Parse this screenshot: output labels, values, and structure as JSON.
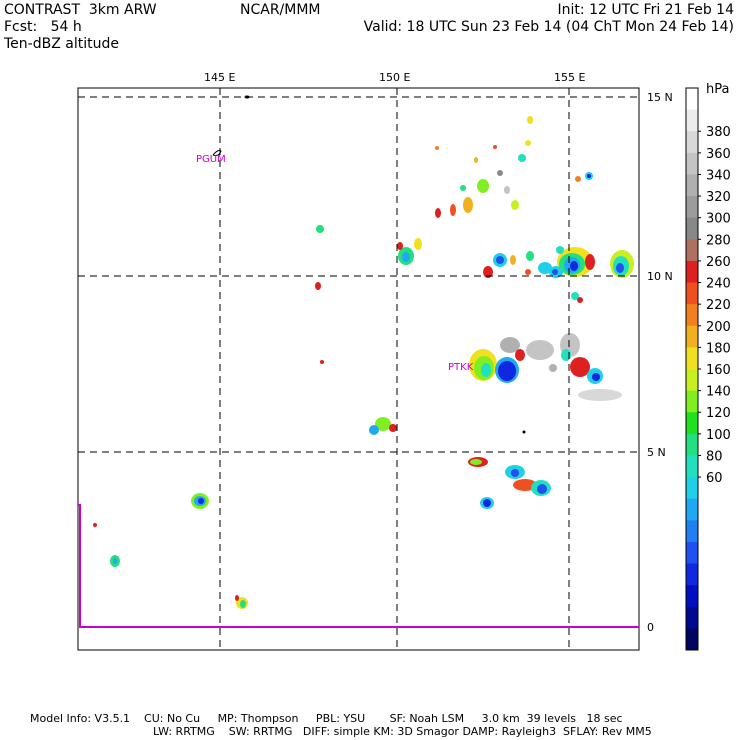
{
  "header": {
    "model_line": "CONTRAST  3km ARW",
    "fcst_line": "Fcst:   54 h",
    "field": "Ten-dBZ altitude",
    "center": "NCAR/MMM",
    "init": "Init: 12 UTC Fri 21 Feb 14",
    "valid": "Valid: 18 UTC Sun 23 Feb 14 (04 ChT Mon 24 Feb 14)"
  },
  "axes": {
    "lon_labels": [
      "145 E",
      "150 E",
      "155 E"
    ],
    "lat_labels": [
      "15 N",
      "10 N",
      "5 N",
      "0"
    ]
  },
  "places": [
    {
      "name": "PGUM"
    },
    {
      "name": "PTKK"
    }
  ],
  "colorbar": {
    "unit": "hPa",
    "labels": [
      "380",
      "360",
      "340",
      "320",
      "300",
      "280",
      "260",
      "240",
      "220",
      "200",
      "180",
      "160",
      "140",
      "120",
      "100",
      "80",
      "60"
    ],
    "colors_top_to_bottom": [
      "#ffffff",
      "#ececec",
      "#d8d8d8",
      "#c4c4c4",
      "#b0b0b0",
      "#9c9c9c",
      "#888888",
      "#b07060",
      "#dd2020",
      "#ee5020",
      "#f08020",
      "#f0b020",
      "#f0e020",
      "#c8f020",
      "#80ee20",
      "#20e020",
      "#20e080",
      "#20e0c0",
      "#20d0e8",
      "#20a8f0",
      "#2080f0",
      "#2050f0",
      "#1028e0",
      "#0010c0",
      "#000a90",
      "#000560"
    ]
  },
  "footer": {
    "line1": "Model Info: V3.5.1    CU: No Cu     MP: Thompson     PBL: YSU       SF: Noah LSM     3.0 km  39 levels   18 sec",
    "line2": "LW: RRTMG    SW: RRTMG   DIFF: simple KM: 3D Smagor DAMP: Rayleigh3  SFLAY: Rev MM5"
  }
}
